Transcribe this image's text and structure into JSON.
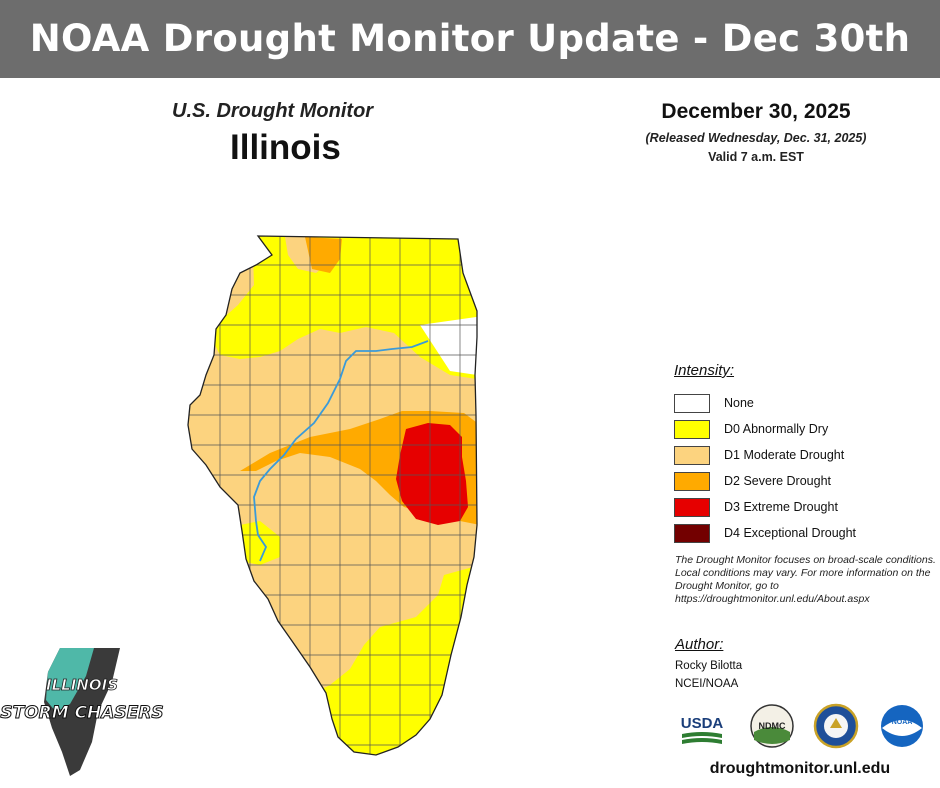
{
  "banner": {
    "title": "NOAA Drought Monitor Update - Dec 30th"
  },
  "map_header": {
    "subtitle": "U.S. Drought Monitor",
    "state": "Illinois"
  },
  "release": {
    "date": "December 30, 2025",
    "released": "(Released Wednesday, Dec. 31, 2025)",
    "valid": "Valid 7 a.m. EST"
  },
  "legend": {
    "title": "Intensity:",
    "items": [
      {
        "label": "None",
        "color": "#ffffff"
      },
      {
        "label": "D0 Abnormally Dry",
        "color": "#ffff00"
      },
      {
        "label": "D1 Moderate Drought",
        "color": "#fcd37f"
      },
      {
        "label": "D2 Severe Drought",
        "color": "#ffaa00"
      },
      {
        "label": "D3 Extreme Drought",
        "color": "#e60000"
      },
      {
        "label": "D4 Exceptional Drought",
        "color": "#730000"
      }
    ]
  },
  "note": "The Drought Monitor focuses on broad-scale conditions. Local conditions may vary. For more information on the Drought Monitor, go to https://droughtmonitor.unl.edu/About.aspx",
  "author": {
    "heading": "Author:",
    "name": "Rocky Bilotta",
    "org": "NCEI/NOAA"
  },
  "partners": {
    "usda": "USDA",
    "ndmc": "NDMC",
    "noaa": "NOAA"
  },
  "site": "droughtmonitor.unl.edu",
  "corner_logo": {
    "line1": "ILLINOIS",
    "line2": "STORM CHASERS"
  },
  "colors": {
    "banner_bg": "#6d6d6d",
    "river": "#3a9ad9",
    "county_lines": "#555555"
  }
}
